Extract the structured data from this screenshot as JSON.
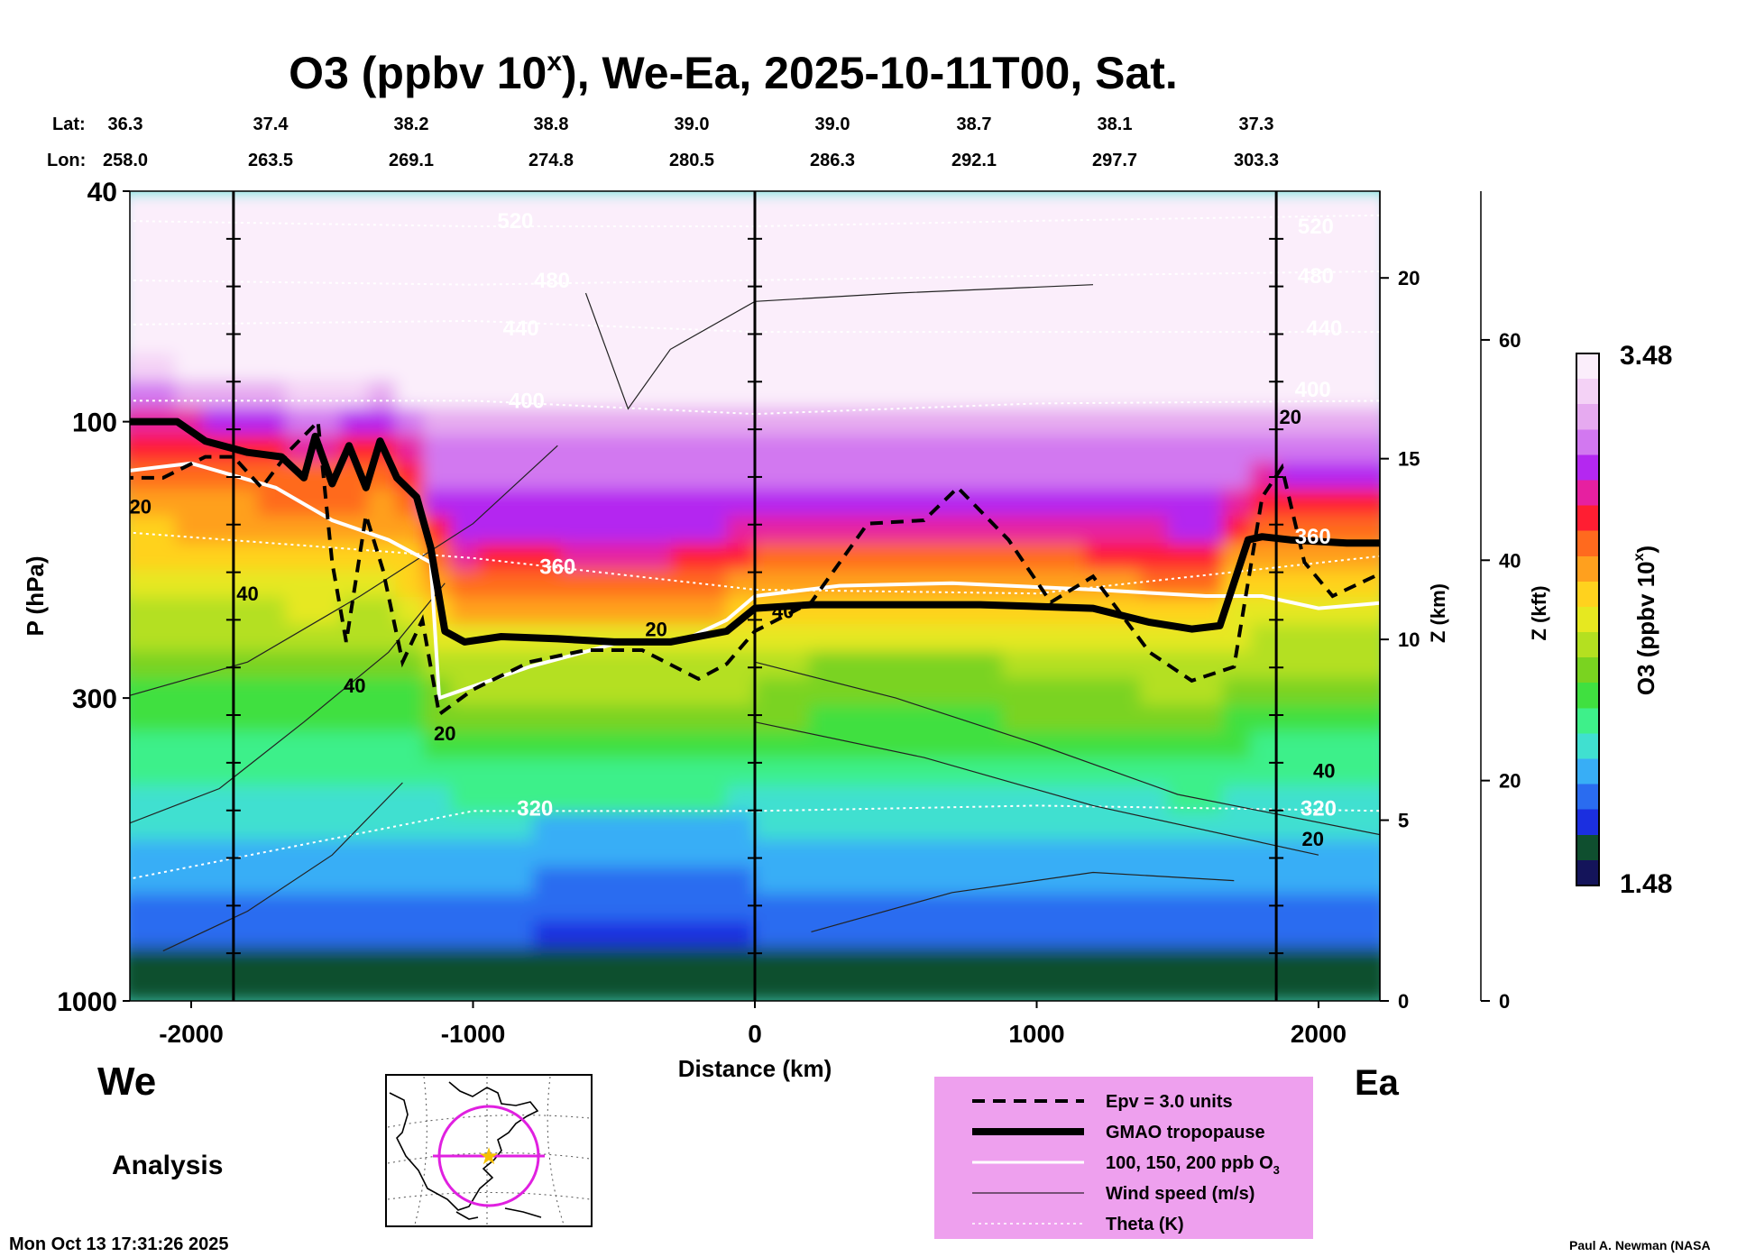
{
  "title": "O3 (ppbv 10",
  "title_sup": "x",
  "title_rest": "), We-Ea, 2025-10-11T00, Sat.",
  "lat_label": "Lat:",
  "lon_label": "Lon:",
  "lat_values": [
    "36.3",
    "37.4",
    "38.2",
    "38.8",
    "39.0",
    "39.0",
    "38.7",
    "38.1",
    "37.3"
  ],
  "lon_values": [
    "258.0",
    "263.5",
    "269.1",
    "274.8",
    "280.5",
    "286.3",
    "292.1",
    "297.7",
    "303.3"
  ],
  "side_labels": {
    "west": "We",
    "east": "Ea",
    "analysis": "Analysis"
  },
  "timestamp": "Mon Oct 13 17:31:26 2025",
  "credit": "Paul A. Newman (NASA",
  "legend": {
    "items": [
      {
        "label": "Epv = 3.0 units",
        "style": "dashed"
      },
      {
        "label": "GMAO tropopause",
        "style": "thick"
      },
      {
        "label": "100, 150, 200 ppb O",
        "sub": "3",
        "style": "white"
      },
      {
        "label": "Wind speed (m/s)",
        "style": "thin"
      },
      {
        "label": "Theta (K)",
        "style": "dotted"
      }
    ]
  },
  "colorbar": {
    "max_label": "3.48",
    "min_label": "1.48",
    "title": "O3 (ppbv 10",
    "title_sup": "x",
    "title_end": ")"
  },
  "colors": {
    "ozone_scale": [
      "#14145a",
      "#0f4f2f",
      "#1b2fe0",
      "#2a6cf0",
      "#38aef6",
      "#40e0d0",
      "#3ef08a",
      "#40e040",
      "#7ad320",
      "#b4e020",
      "#e6e820",
      "#ffd21e",
      "#ffa01e",
      "#ff6a1e",
      "#ff1e32",
      "#e620a0",
      "#b428f0",
      "#d278f0",
      "#e6aaf0",
      "#f4d2f6",
      "#fbeefb"
    ],
    "legend_bg": "#eea0ee",
    "map_circle": "#e020e0",
    "map_star": "#f5c000"
  },
  "chart_data": {
    "type": "contour-cross-section",
    "variable": "O3 (log10 ppbv)",
    "xlabel": "Distance (km)",
    "ylabel": "P (hPa)",
    "xlim": [
      -2250,
      2250
    ],
    "ylim_hpa": [
      1000,
      40
    ],
    "x_ticks": [
      -2000,
      -1000,
      0,
      1000,
      2000
    ],
    "x_tick_labels": [
      "-2000",
      "-1000",
      "0",
      "1000",
      "2000"
    ],
    "p_ticks": [
      40,
      100,
      300,
      1000
    ],
    "p_tick_labels": [
      "40",
      "100",
      "300",
      "1000"
    ],
    "z_km_ticks": [
      0,
      5,
      10,
      15,
      20
    ],
    "z_km_label": "Z (km)",
    "z_kft_ticks": [
      0,
      20,
      40,
      60
    ],
    "z_kft_label": "Z (kft)",
    "colorbar_range": [
      1.48,
      3.48
    ],
    "vertical_marker_lines_km": [
      -1850,
      0,
      1850
    ],
    "tropopause_hpa": [
      [
        -2250,
        100
      ],
      [
        -2150,
        100
      ],
      [
        -2050,
        100
      ],
      [
        -1950,
        108
      ],
      [
        -1800,
        113
      ],
      [
        -1680,
        115
      ],
      [
        -1600,
        125
      ],
      [
        -1560,
        106
      ],
      [
        -1500,
        128
      ],
      [
        -1440,
        110
      ],
      [
        -1380,
        130
      ],
      [
        -1330,
        108
      ],
      [
        -1270,
        125
      ],
      [
        -1200,
        135
      ],
      [
        -1150,
        165
      ],
      [
        -1100,
        230
      ],
      [
        -1030,
        240
      ],
      [
        -900,
        235
      ],
      [
        -700,
        237
      ],
      [
        -500,
        240
      ],
      [
        -300,
        240
      ],
      [
        -100,
        230
      ],
      [
        0,
        210
      ],
      [
        200,
        207
      ],
      [
        800,
        207
      ],
      [
        1200,
        210
      ],
      [
        1400,
        222
      ],
      [
        1550,
        228
      ],
      [
        1650,
        225
      ],
      [
        1750,
        160
      ],
      [
        1800,
        158
      ],
      [
        1900,
        160
      ],
      [
        2100,
        162
      ],
      [
        2250,
        162
      ]
    ],
    "epv_3_hpa": [
      [
        -2250,
        125
      ],
      [
        -2100,
        125
      ],
      [
        -1950,
        115
      ],
      [
        -1850,
        115
      ],
      [
        -1750,
        130
      ],
      [
        -1650,
        112
      ],
      [
        -1550,
        100
      ],
      [
        -1500,
        175
      ],
      [
        -1450,
        240
      ],
      [
        -1380,
        145
      ],
      [
        -1320,
        180
      ],
      [
        -1250,
        260
      ],
      [
        -1180,
        220
      ],
      [
        -1120,
        320
      ],
      [
        -1000,
        290
      ],
      [
        -800,
        260
      ],
      [
        -600,
        248
      ],
      [
        -400,
        248
      ],
      [
        -200,
        278
      ],
      [
        -100,
        262
      ],
      [
        0,
        230
      ],
      [
        200,
        205
      ],
      [
        400,
        150
      ],
      [
        600,
        148
      ],
      [
        720,
        130
      ],
      [
        900,
        160
      ],
      [
        1050,
        205
      ],
      [
        1200,
        185
      ],
      [
        1400,
        250
      ],
      [
        1550,
        280
      ],
      [
        1700,
        265
      ],
      [
        1800,
        135
      ],
      [
        1870,
        120
      ],
      [
        1950,
        175
      ],
      [
        2050,
        200
      ],
      [
        2250,
        180
      ]
    ],
    "ozone_100ppb_contour_hpa": [
      [
        -2250,
        122
      ],
      [
        -2000,
        118
      ],
      [
        -1700,
        130
      ],
      [
        -1500,
        148
      ],
      [
        -1300,
        160
      ],
      [
        -1150,
        175
      ],
      [
        -1120,
        300
      ],
      [
        -800,
        265
      ],
      [
        -500,
        242
      ],
      [
        -250,
        238
      ],
      [
        -100,
        220
      ],
      [
        0,
        200
      ],
      [
        300,
        192
      ],
      [
        700,
        190
      ],
      [
        1200,
        195
      ],
      [
        1600,
        200
      ],
      [
        1800,
        200
      ],
      [
        2000,
        210
      ],
      [
        2250,
        205
      ]
    ],
    "theta_levels_K": [
      320,
      360,
      400,
      440,
      480,
      520
    ],
    "theta_contour_hpa": [
      {
        "theta": 520,
        "points": [
          [
            -2250,
            45
          ],
          [
            -1000,
            46
          ],
          [
            0,
            46
          ],
          [
            1000,
            45
          ],
          [
            2250,
            44
          ]
        ]
      },
      {
        "theta": 480,
        "points": [
          [
            -2250,
            57
          ],
          [
            -1000,
            58
          ],
          [
            0,
            57
          ],
          [
            1000,
            56
          ],
          [
            2250,
            55
          ]
        ]
      },
      {
        "theta": 440,
        "points": [
          [
            -2250,
            68
          ],
          [
            -1000,
            67
          ],
          [
            0,
            70
          ],
          [
            1000,
            70
          ],
          [
            2250,
            70
          ]
        ]
      },
      {
        "theta": 400,
        "points": [
          [
            -2250,
            92
          ],
          [
            -1000,
            92
          ],
          [
            0,
            97
          ],
          [
            1000,
            93
          ],
          [
            2250,
            92
          ]
        ]
      },
      {
        "theta": 360,
        "points": [
          [
            -2250,
            155
          ],
          [
            -1000,
            172
          ],
          [
            0,
            195
          ],
          [
            1000,
            198
          ],
          [
            2250,
            170
          ]
        ]
      },
      {
        "theta": 320,
        "points": [
          [
            -2250,
            620
          ],
          [
            -1000,
            470
          ],
          [
            0,
            470
          ],
          [
            1000,
            460
          ],
          [
            2250,
            470
          ]
        ]
      }
    ],
    "contour_labels": [
      {
        "text": "520",
        "x": -850,
        "p": 45
      },
      {
        "text": "480",
        "x": -720,
        "p": 57
      },
      {
        "text": "440",
        "x": -830,
        "p": 69
      },
      {
        "text": "400",
        "x": -810,
        "p": 92
      },
      {
        "text": "360",
        "x": -700,
        "p": 178
      },
      {
        "text": "320",
        "x": -780,
        "p": 465
      },
      {
        "text": "520",
        "x": 1990,
        "p": 46
      },
      {
        "text": "480",
        "x": 1990,
        "p": 56
      },
      {
        "text": "440",
        "x": 2020,
        "p": 69
      },
      {
        "text": "400",
        "x": 1980,
        "p": 88
      },
      {
        "text": "360",
        "x": 1980,
        "p": 158
      },
      {
        "text": "320",
        "x": 2000,
        "p": 465
      }
    ],
    "wind_labels": [
      {
        "text": "20",
        "x": -2180,
        "p": 140
      },
      {
        "text": "40",
        "x": -1800,
        "p": 198
      },
      {
        "text": "40",
        "x": -1420,
        "p": 285
      },
      {
        "text": "20",
        "x": -1100,
        "p": 345
      },
      {
        "text": "20",
        "x": -350,
        "p": 228
      },
      {
        "text": "40",
        "x": 100,
        "p": 212
      },
      {
        "text": "20",
        "x": 1900,
        "p": 98
      },
      {
        "text": "40",
        "x": 2020,
        "p": 400
      },
      {
        "text": "20",
        "x": 1980,
        "p": 525
      }
    ]
  }
}
